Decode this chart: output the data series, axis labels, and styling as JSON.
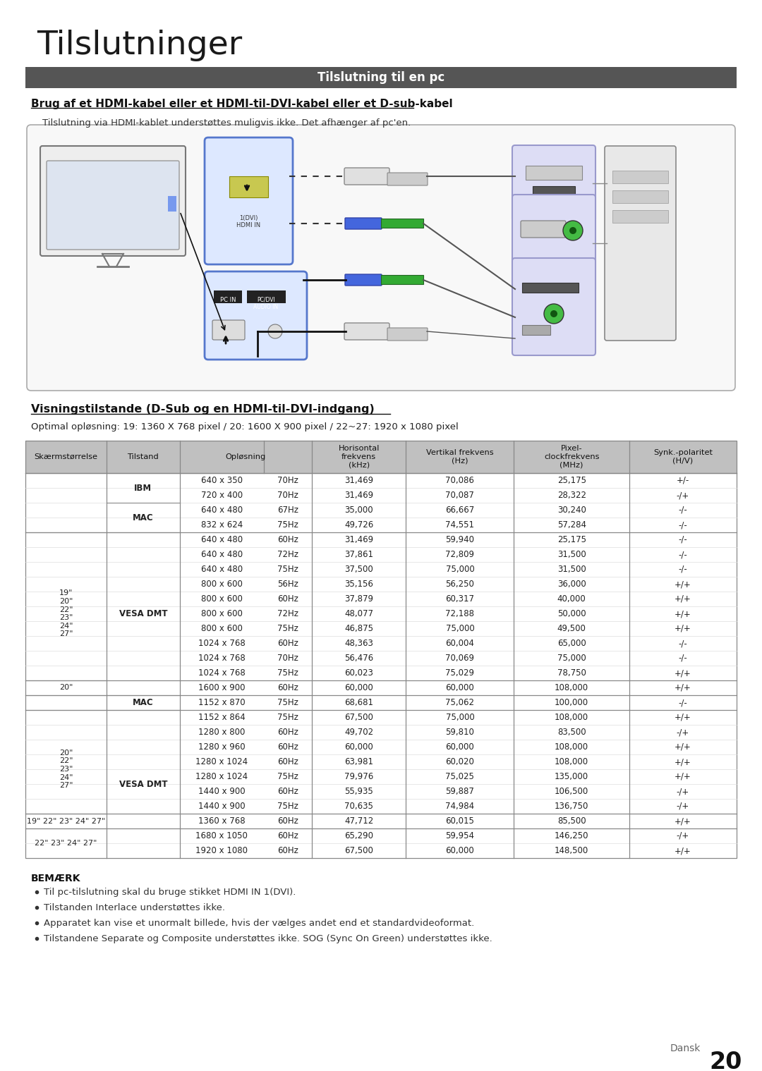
{
  "title": "Tilslutninger",
  "section_header": "Tilslutning til en pc",
  "section_header_bg": "#555555",
  "section_header_color": "#ffffff",
  "bold_heading": "Brug af et HDMI-kabel eller et HDMI-til-DVI-kabel eller et D-sub-kabel",
  "subtext": "Tilslutning via HDMI-kablet understøttes muligvis ikke. Det afhænger af pc'en.",
  "table_heading": "Visningstilstande (D-Sub og en HDMI-til-DVI-indgang)",
  "optimal_text": "Optimal opløsning: 19: 1360 X 768 pixel / 20: 1600 X 900 pixel / 22~27: 1920 x 1080 pixel",
  "table_header_bg": "#c0c0c0",
  "rows": [
    [
      "",
      "IBM",
      "640 x 350",
      "70Hz",
      "31,469",
      "70,086",
      "25,175",
      "+/-"
    ],
    [
      "",
      "",
      "720 x 400",
      "70Hz",
      "31,469",
      "70,087",
      "28,322",
      "-/+"
    ],
    [
      "",
      "MAC",
      "640 x 480",
      "67Hz",
      "35,000",
      "66,667",
      "30,240",
      "-/-"
    ],
    [
      "",
      "",
      "832 x 624",
      "75Hz",
      "49,726",
      "74,551",
      "57,284",
      "-/-"
    ],
    [
      "19\"\n20\"\n22\"\n23\"\n24\"\n27\"",
      "VESA DMT",
      "640 x 480",
      "60Hz",
      "31,469",
      "59,940",
      "25,175",
      "-/-"
    ],
    [
      "",
      "",
      "640 x 480",
      "72Hz",
      "37,861",
      "72,809",
      "31,500",
      "-/-"
    ],
    [
      "",
      "",
      "640 x 480",
      "75Hz",
      "37,500",
      "75,000",
      "31,500",
      "-/-"
    ],
    [
      "",
      "",
      "800 x 600",
      "56Hz",
      "35,156",
      "56,250",
      "36,000",
      "+/+"
    ],
    [
      "",
      "",
      "800 x 600",
      "60Hz",
      "37,879",
      "60,317",
      "40,000",
      "+/+"
    ],
    [
      "",
      "",
      "800 x 600",
      "72Hz",
      "48,077",
      "72,188",
      "50,000",
      "+/+"
    ],
    [
      "",
      "",
      "800 x 600",
      "75Hz",
      "46,875",
      "75,000",
      "49,500",
      "+/+"
    ],
    [
      "",
      "",
      "1024 x 768",
      "60Hz",
      "48,363",
      "60,004",
      "65,000",
      "-/-"
    ],
    [
      "",
      "",
      "1024 x 768",
      "70Hz",
      "56,476",
      "70,069",
      "75,000",
      "-/-"
    ],
    [
      "",
      "",
      "1024 x 768",
      "75Hz",
      "60,023",
      "75,029",
      "78,750",
      "+/+"
    ],
    [
      "20\"",
      "",
      "1600 x 900",
      "60Hz",
      "60,000",
      "60,000",
      "108,000",
      "+/+"
    ],
    [
      "",
      "MAC",
      "1152 x 870",
      "75Hz",
      "68,681",
      "75,062",
      "100,000",
      "-/-"
    ],
    [
      "20\"\n22\"\n23\"\n24\"\n27\"",
      "VESA DMT",
      "1152 x 864",
      "75Hz",
      "67,500",
      "75,000",
      "108,000",
      "+/+"
    ],
    [
      "",
      "",
      "1280 x 800",
      "60Hz",
      "49,702",
      "59,810",
      "83,500",
      "-/+"
    ],
    [
      "",
      "",
      "1280 x 960",
      "60Hz",
      "60,000",
      "60,000",
      "108,000",
      "+/+"
    ],
    [
      "",
      "",
      "1280 x 1024",
      "60Hz",
      "63,981",
      "60,020",
      "108,000",
      "+/+"
    ],
    [
      "",
      "",
      "1280 x 1024",
      "75Hz",
      "79,976",
      "75,025",
      "135,000",
      "+/+"
    ],
    [
      "",
      "",
      "1440 x 900",
      "60Hz",
      "55,935",
      "59,887",
      "106,500",
      "-/+"
    ],
    [
      "",
      "",
      "1440 x 900",
      "75Hz",
      "70,635",
      "74,984",
      "136,750",
      "-/+"
    ],
    [
      "19\" 22\" 23\" 24\" 27\"",
      "",
      "1360 x 768",
      "60Hz",
      "47,712",
      "60,015",
      "85,500",
      "+/+"
    ],
    [
      "22\" 23\" 24\" 27\"",
      "",
      "1680 x 1050",
      "60Hz",
      "65,290",
      "59,954",
      "146,250",
      "-/+"
    ],
    [
      "",
      "",
      "1920 x 1080",
      "60Hz",
      "67,500",
      "60,000",
      "148,500",
      "+/+"
    ]
  ],
  "note_header": "BEMÆRK",
  "notes": [
    "Til pc-tilslutning skal du bruge stikket HDMI IN 1(DVI).",
    "Tilstanden Interlace understøttes ikke.",
    "Apparatet kan vise et unormalt billede, hvis der vælges andet end et standardvideoformat.",
    "Tilstandene Separate og Composite understøttes ikke. SOG (Sync On Green) understøttes ikke."
  ],
  "page_label": "Dansk",
  "page_number": "20",
  "bg_color": "#ffffff"
}
